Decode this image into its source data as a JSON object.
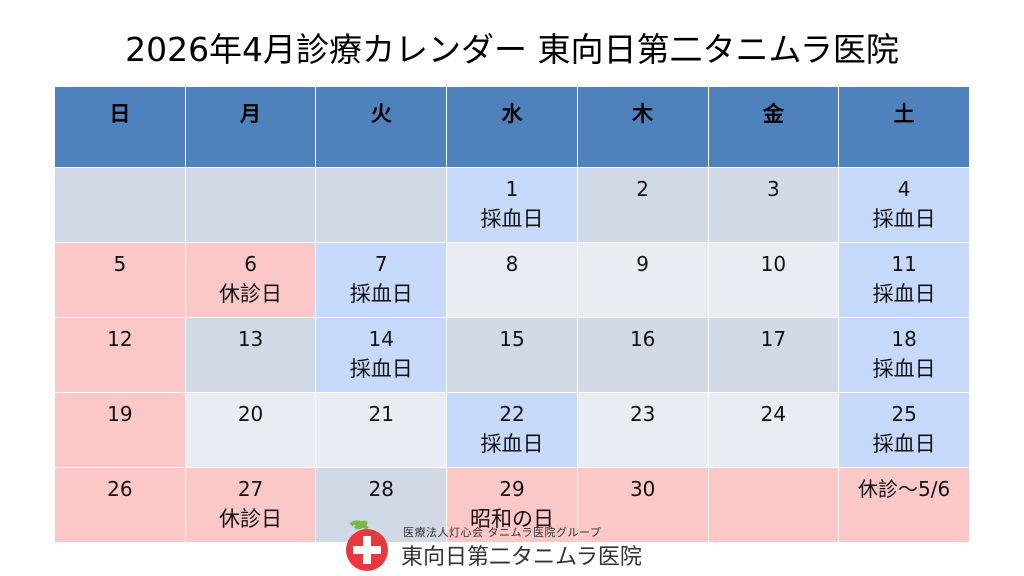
{
  "title": "2026年4月診療カレンダー 東向日第二タニムラ医院",
  "weekdays": [
    "日",
    "月",
    "火",
    "水",
    "木",
    "金",
    "土"
  ],
  "weeks": [
    [
      {
        "n": "",
        "l": "",
        "c": "gray"
      },
      {
        "n": "",
        "l": "",
        "c": "gray"
      },
      {
        "n": "",
        "l": "",
        "c": "gray"
      },
      {
        "n": "1",
        "l": "採血日",
        "c": "blue"
      },
      {
        "n": "2",
        "l": "",
        "c": "gray"
      },
      {
        "n": "3",
        "l": "",
        "c": "gray"
      },
      {
        "n": "4",
        "l": "採血日",
        "c": "blue"
      }
    ],
    [
      {
        "n": "5",
        "l": "",
        "c": "red"
      },
      {
        "n": "6",
        "l": "休診日",
        "c": "red"
      },
      {
        "n": "7",
        "l": "採血日",
        "c": "blue"
      },
      {
        "n": "8",
        "l": "",
        "c": "light"
      },
      {
        "n": "9",
        "l": "",
        "c": "light"
      },
      {
        "n": "10",
        "l": "",
        "c": "light"
      },
      {
        "n": "11",
        "l": "採血日",
        "c": "blue"
      }
    ],
    [
      {
        "n": "12",
        "l": "",
        "c": "red"
      },
      {
        "n": "13",
        "l": "",
        "c": "gray"
      },
      {
        "n": "14",
        "l": "採血日",
        "c": "blue"
      },
      {
        "n": "15",
        "l": "",
        "c": "gray"
      },
      {
        "n": "16",
        "l": "",
        "c": "gray"
      },
      {
        "n": "17",
        "l": "",
        "c": "gray"
      },
      {
        "n": "18",
        "l": "採血日",
        "c": "blue"
      }
    ],
    [
      {
        "n": "19",
        "l": "",
        "c": "red"
      },
      {
        "n": "20",
        "l": "",
        "c": "light"
      },
      {
        "n": "21",
        "l": "",
        "c": "light"
      },
      {
        "n": "22",
        "l": "採血日",
        "c": "blue"
      },
      {
        "n": "23",
        "l": "",
        "c": "light"
      },
      {
        "n": "24",
        "l": "",
        "c": "light"
      },
      {
        "n": "25",
        "l": "採血日",
        "c": "blue"
      }
    ],
    [
      {
        "n": "26",
        "l": "",
        "c": "red"
      },
      {
        "n": "27",
        "l": "休診日",
        "c": "red"
      },
      {
        "n": "28",
        "l": "",
        "c": "gray"
      },
      {
        "n": "29",
        "l": "昭和の日",
        "c": "red"
      },
      {
        "n": "30",
        "l": "",
        "c": "red"
      },
      {
        "n": "",
        "l": "",
        "c": "red"
      },
      {
        "n": "休診～5/6",
        "l": "",
        "c": "red"
      }
    ]
  ],
  "footer": {
    "group": "医療法人灯心会 タニムラ医院グループ",
    "name": "東向日第二タニムラ医院",
    "logo_icon": "apple-cross-logo-icon"
  },
  "colors": {
    "header": "#4f81bd",
    "red": "#fcc7c7",
    "gray": "#d2d9e6",
    "light": "#e9edf3",
    "blue": "#c6d9fa"
  }
}
